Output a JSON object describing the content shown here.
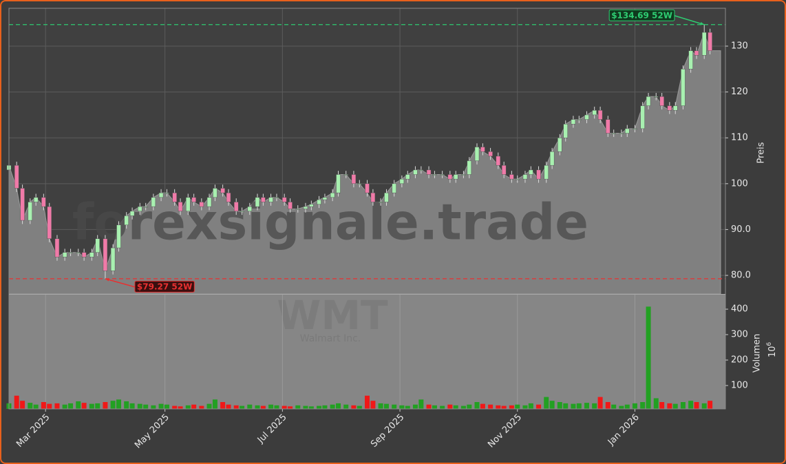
{
  "chart_data": {
    "type": "candlestick",
    "watermark": {
      "site": "forexsignale.trade",
      "symbol": "WMT",
      "name": "Walmart Inc."
    },
    "ylabel": "Preis",
    "x": [
      0,
      4,
      7,
      11,
      14,
      18,
      21,
      25,
      29,
      32,
      36,
      39,
      43,
      46,
      50,
      54,
      57,
      61,
      64,
      68,
      71,
      75,
      79,
      82,
      86,
      89,
      93,
      96,
      100,
      104,
      107,
      111,
      114,
      118,
      121,
      125,
      129,
      132,
      136,
      139,
      143,
      146,
      150,
      154,
      157,
      161,
      164,
      168,
      171,
      175,
      179,
      182,
      186,
      189,
      193,
      196,
      200,
      204,
      207,
      211,
      214,
      218,
      221,
      225,
      229,
      232,
      236,
      239,
      243,
      246,
      250,
      254,
      257,
      261,
      264,
      268,
      271,
      275,
      279,
      282,
      286,
      289,
      293,
      296,
      300,
      304,
      307,
      311,
      314,
      318,
      321,
      325,
      329,
      332,
      336,
      339,
      343,
      346,
      350,
      354,
      357,
      361,
      364
    ],
    "open": [
      103,
      104,
      99,
      92,
      96,
      97,
      95,
      88,
      84,
      85,
      85,
      85,
      84,
      85,
      88,
      81,
      86,
      91,
      93,
      94,
      95,
      95,
      97,
      98,
      98,
      96,
      94,
      97,
      96,
      95,
      97,
      99,
      98,
      96,
      94,
      94,
      95,
      97,
      96,
      97,
      97,
      96,
      94.5,
      94.5,
      95,
      95.5,
      96.5,
      97,
      98,
      102,
      102,
      100,
      100,
      98,
      96,
      96,
      98,
      100,
      101,
      102,
      103,
      103,
      102,
      102,
      102,
      101,
      102,
      102,
      105,
      108,
      107,
      106,
      104,
      102,
      101,
      101,
      102,
      103,
      101,
      104,
      107,
      110,
      113,
      114,
      114,
      115,
      116,
      114,
      111,
      111,
      111,
      112,
      112,
      117,
      119,
      119,
      117,
      116,
      117,
      125,
      129,
      128,
      133
    ],
    "high": [
      104.8,
      104.8,
      99.8,
      96.8,
      97.8,
      97.8,
      95.8,
      88.8,
      85.8,
      85.8,
      85.8,
      85.8,
      85.8,
      88.8,
      88.8,
      86.8,
      91.8,
      93.8,
      94.8,
      95.8,
      95.8,
      97.8,
      98.8,
      98.8,
      98.8,
      96.8,
      97.8,
      97.8,
      96.8,
      97.8,
      99.8,
      99.8,
      98.8,
      96.8,
      94.8,
      95.8,
      97.8,
      97.8,
      97.8,
      97.8,
      97.8,
      96.8,
      95.3,
      95.8,
      96.3,
      97.3,
      97.8,
      98.8,
      102.8,
      102.8,
      102.8,
      100.8,
      100.8,
      98.8,
      96.8,
      98.8,
      100.8,
      101.8,
      102.8,
      103.8,
      103.8,
      103.8,
      102.8,
      102.8,
      102.8,
      102.8,
      102.8,
      105.8,
      108.8,
      108.8,
      107.8,
      106.8,
      104.8,
      102.8,
      101.8,
      102.8,
      103.8,
      103.8,
      104.8,
      107.8,
      110.8,
      113.8,
      114.8,
      114.8,
      115.8,
      116.8,
      116.8,
      114.8,
      111.8,
      111.8,
      112.8,
      112.8,
      117.8,
      119.8,
      119.8,
      119.8,
      117.8,
      117.8,
      125.8,
      129.8,
      129.8,
      134.69,
      133.8
    ],
    "low": [
      102.2,
      98.2,
      91.2,
      91.2,
      95.2,
      94.2,
      87.2,
      83.2,
      83.2,
      84.2,
      84.2,
      83.2,
      83.2,
      84.2,
      79.27,
      80.2,
      85.2,
      90.2,
      92.2,
      93.2,
      94.2,
      94.2,
      96.2,
      97.2,
      95.2,
      93.2,
      93.2,
      95.2,
      94.2,
      94.2,
      96.2,
      97.2,
      95.2,
      93.2,
      93.2,
      93.2,
      94.2,
      95.2,
      95.2,
      96.2,
      95.2,
      93.7,
      93.7,
      93.7,
      94.2,
      94.7,
      95.7,
      96.2,
      97.2,
      101.2,
      99.2,
      99.2,
      97.2,
      95.2,
      95.2,
      95.2,
      97.2,
      99.2,
      100.2,
      101.2,
      102.2,
      101.2,
      101.2,
      101.2,
      100.2,
      100.2,
      101.2,
      101.2,
      104.2,
      106.2,
      105.2,
      103.2,
      101.2,
      100.2,
      100.2,
      100.2,
      101.2,
      100.2,
      100.2,
      103.2,
      106.2,
      109.2,
      112.2,
      113.2,
      113.2,
      114.2,
      113.2,
      110.2,
      110.2,
      110.2,
      110.2,
      111.2,
      111.2,
      116.2,
      118.2,
      116.2,
      115.2,
      115.2,
      116.2,
      124.2,
      127.2,
      127.2,
      128.2
    ],
    "close": [
      104,
      99,
      92,
      96,
      97,
      95,
      88,
      84,
      85,
      85,
      85,
      84,
      85,
      88,
      81,
      86,
      91,
      93,
      94,
      95,
      95,
      97,
      98,
      98,
      96,
      94,
      97,
      96,
      95,
      97,
      99,
      98,
      96,
      94,
      94,
      95,
      97,
      96,
      97,
      97,
      96,
      94.5,
      94.5,
      95,
      95.5,
      96.5,
      97,
      98,
      102,
      102,
      100,
      100,
      98,
      96,
      96,
      98,
      100,
      101,
      102,
      103,
      103,
      102,
      102,
      102,
      101,
      102,
      102,
      105,
      108,
      107,
      106,
      104,
      102,
      101,
      101,
      102,
      103,
      101,
      104,
      107,
      110,
      113,
      114,
      114,
      115,
      116,
      114,
      111,
      111,
      111,
      112,
      112,
      117,
      119,
      119,
      117,
      116,
      117,
      125,
      129,
      128,
      133,
      129
    ],
    "up_color": "#a8f0b0",
    "down_color": "#f07aa8",
    "xlim": [
      0,
      372
    ],
    "xticks": [
      {
        "value": 19,
        "label": "Mar 2025"
      },
      {
        "value": 81,
        "label": "May 2025"
      },
      {
        "value": 142,
        "label": "Jul 2025"
      },
      {
        "value": 203,
        "label": "Sep 2025"
      },
      {
        "value": 264,
        "label": "Nov 2025"
      },
      {
        "value": 325,
        "label": "Jan 2026"
      }
    ],
    "ylim": [
      75.95,
      138.26
    ],
    "yticks": [
      {
        "value": 80,
        "label": "80.0"
      },
      {
        "value": 90,
        "label": "90.0"
      },
      100,
      110,
      120,
      130
    ],
    "grid": true,
    "annotations": [
      {
        "x": 361,
        "value": 134.69,
        "label": "$134.69 52W",
        "color": "#2ecc71"
      },
      {
        "x": 50,
        "value": 79.27,
        "label": "$79.27 52W",
        "color": "#e83030"
      }
    ],
    "volume": {
      "label": "Volumen",
      "unit_base": "10",
      "unit_exponent": "6",
      "values": [
        30,
        60,
        40,
        32,
        25,
        35,
        28,
        30,
        25,
        30,
        38,
        32,
        28,
        30,
        35,
        40,
        45,
        38,
        30,
        28,
        25,
        22,
        28,
        25,
        20,
        18,
        22,
        25,
        20,
        28,
        45,
        35,
        25,
        22,
        20,
        25,
        22,
        20,
        25,
        22,
        20,
        18,
        22,
        20,
        18,
        20,
        22,
        25,
        30,
        25,
        22,
        20,
        60,
        40,
        30,
        28,
        25,
        22,
        20,
        25,
        45,
        25,
        22,
        20,
        25,
        22,
        20,
        25,
        35,
        28,
        25,
        22,
        20,
        22,
        25,
        22,
        30,
        25,
        55,
        40,
        35,
        30,
        28,
        30,
        32,
        30,
        55,
        35,
        25,
        20,
        25,
        30,
        35,
        410,
        50,
        35,
        30,
        28,
        35,
        40,
        35,
        30,
        40
      ],
      "up_color": "#22a022",
      "down_color": "#f01818",
      "ylim": [
        8,
        457
      ],
      "yticks": [
        100,
        200,
        300,
        400
      ]
    }
  }
}
